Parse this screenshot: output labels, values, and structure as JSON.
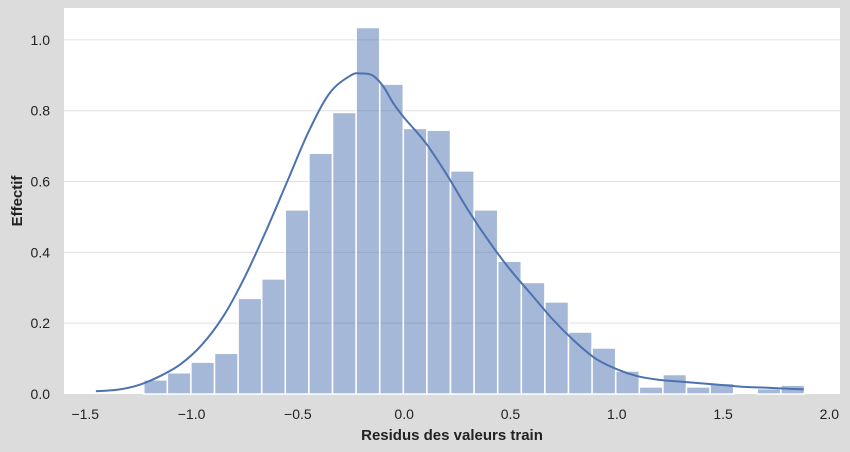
{
  "chart_data": {
    "type": "bar",
    "subtype": "histogram_with_kde",
    "xlabel": "Residus des valeurs train",
    "ylabel": "Effectif",
    "xlim": [
      -1.6,
      2.05
    ],
    "ylim": [
      0,
      1.09
    ],
    "xticks": [
      -1.5,
      -1.0,
      -0.5,
      0.0,
      0.5,
      1.0,
      1.5,
      2.0
    ],
    "xtick_labels": [
      "−1.5",
      "−1.0",
      "−0.5",
      "0.0",
      "0.5",
      "1.0",
      "1.5",
      "2.0"
    ],
    "yticks": [
      0.0,
      0.2,
      0.4,
      0.6,
      0.8,
      1.0
    ],
    "ytick_labels": [
      "0.0",
      "0.2",
      "0.4",
      "0.6",
      "0.8",
      "1.0"
    ],
    "grid": "horizontal",
    "bin_width": 0.111,
    "bins": [
      {
        "x0": -1.225,
        "value": 0.04
      },
      {
        "x0": -1.114,
        "value": 0.06
      },
      {
        "x0": -1.003,
        "value": 0.09
      },
      {
        "x0": -0.892,
        "value": 0.115
      },
      {
        "x0": -0.781,
        "value": 0.27
      },
      {
        "x0": -0.67,
        "value": 0.325
      },
      {
        "x0": -0.559,
        "value": 0.52
      },
      {
        "x0": -0.448,
        "value": 0.68
      },
      {
        "x0": -0.337,
        "value": 0.795
      },
      {
        "x0": -0.226,
        "value": 1.035
      },
      {
        "x0": -0.115,
        "value": 0.875
      },
      {
        "x0": -0.004,
        "value": 0.75
      },
      {
        "x0": 0.107,
        "value": 0.745
      },
      {
        "x0": 0.218,
        "value": 0.63
      },
      {
        "x0": 0.329,
        "value": 0.52
      },
      {
        "x0": 0.44,
        "value": 0.375
      },
      {
        "x0": 0.551,
        "value": 0.315
      },
      {
        "x0": 0.662,
        "value": 0.26
      },
      {
        "x0": 0.773,
        "value": 0.175
      },
      {
        "x0": 0.884,
        "value": 0.13
      },
      {
        "x0": 0.995,
        "value": 0.065
      },
      {
        "x0": 1.106,
        "value": 0.02
      },
      {
        "x0": 1.217,
        "value": 0.055
      },
      {
        "x0": 1.328,
        "value": 0.02
      },
      {
        "x0": 1.439,
        "value": 0.03
      },
      {
        "x0": 1.661,
        "value": 0.015
      },
      {
        "x0": 1.772,
        "value": 0.025
      }
    ],
    "kde": {
      "x": [
        -1.45,
        -1.35,
        -1.25,
        -1.15,
        -1.05,
        -0.95,
        -0.85,
        -0.75,
        -0.65,
        -0.55,
        -0.45,
        -0.35,
        -0.25,
        -0.2,
        -0.15,
        -0.1,
        -0.05,
        0.0,
        0.1,
        0.2,
        0.3,
        0.4,
        0.5,
        0.6,
        0.7,
        0.8,
        0.9,
        1.0,
        1.1,
        1.2,
        1.3,
        1.4,
        1.5,
        1.6,
        1.7,
        1.8,
        1.88
      ],
      "y": [
        0.008,
        0.012,
        0.025,
        0.05,
        0.085,
        0.14,
        0.22,
        0.33,
        0.46,
        0.6,
        0.74,
        0.85,
        0.9,
        0.905,
        0.9,
        0.87,
        0.82,
        0.78,
        0.71,
        0.62,
        0.52,
        0.43,
        0.35,
        0.28,
        0.21,
        0.15,
        0.1,
        0.07,
        0.05,
        0.04,
        0.035,
        0.03,
        0.025,
        0.02,
        0.018,
        0.015,
        0.013
      ]
    },
    "colors": {
      "bar_fill": "#4c72b0",
      "bar_opacity": 0.5,
      "bar_edge": "#ffffff",
      "kde_line": "#4c72b0",
      "plot_background": "#ffffff",
      "figure_background": "#dcdcdc",
      "grid": "#e0e0e0"
    }
  }
}
